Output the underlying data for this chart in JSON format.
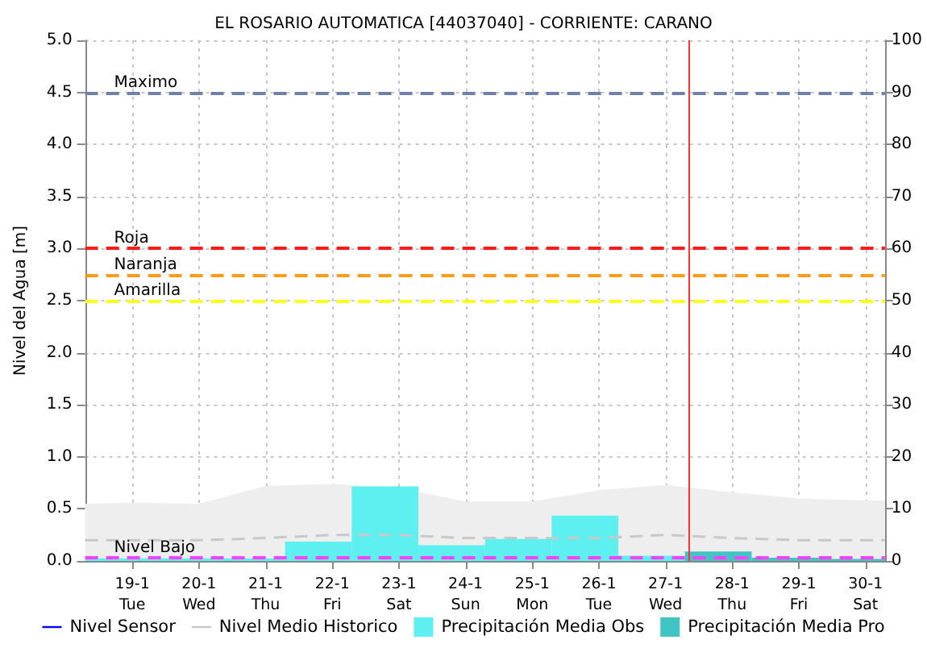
{
  "chart_data": {
    "type": "line",
    "title": "EL ROSARIO AUTOMATICA [44037040] - CORRIENTE: CARANO",
    "ylabel": "Nivel del Agua [m]",
    "xlim": [
      "--01-18T07:00",
      "--01-30T07:00"
    ],
    "xticks": [
      {
        "value": "--01-19",
        "label": "19-1\nTue"
      },
      {
        "value": "--01-20",
        "label": "20-1\nWed"
      },
      {
        "value": "--01-21",
        "label": "21-1\nThu"
      },
      {
        "value": "--01-22",
        "label": "22-1\nFri"
      },
      {
        "value": "--01-23",
        "label": "23-1\nSat"
      },
      {
        "value": "--01-24",
        "label": "24-1\nSun"
      },
      {
        "value": "--01-25",
        "label": "25-1\nMon"
      },
      {
        "value": "--01-26",
        "label": "26-1\nTue"
      },
      {
        "value": "--01-27",
        "label": "27-1\nWed"
      },
      {
        "value": "--01-28",
        "label": "28-1\nThu"
      },
      {
        "value": "--01-29",
        "label": "29-1\nFri"
      },
      {
        "value": "--01-30",
        "label": "30-1\nSat"
      }
    ],
    "ylim": [
      0,
      5
    ],
    "yticks": [
      {
        "value": 0,
        "label": "0.0"
      },
      0.5,
      {
        "value": 1,
        "label": "1.0"
      },
      1.5,
      {
        "value": 2,
        "label": "2.0"
      },
      2.5,
      {
        "value": 3,
        "label": "3.0"
      },
      3.5,
      {
        "value": 4,
        "label": "4.0"
      },
      4.5,
      {
        "value": 5,
        "label": "5.0"
      }
    ],
    "y2lim": [
      0,
      100
    ],
    "y2ticks": [
      0,
      10,
      20,
      30,
      40,
      50,
      60,
      70,
      80,
      90,
      100
    ],
    "series": [
      {
        "name": "Nivel Sensor",
        "color": "#0000ff"
      },
      {
        "name": "Nivel Medio Historico",
        "color": "#c8c8c8",
        "line_style": "dashed",
        "x": [
          "--01-18T07:00",
          "--01-19",
          "--01-20",
          "--01-21",
          "--01-22",
          "--01-23",
          "--01-24",
          "--01-25",
          "--01-26",
          "--01-27",
          "--01-28",
          "--01-29",
          "--01-30",
          "--01-30T07:00"
        ],
        "values": [
          0.2,
          0.2,
          0.2,
          0.22,
          0.25,
          0.25,
          0.22,
          0.22,
          0.22,
          0.25,
          0.22,
          0.2,
          0.2,
          0.2
        ],
        "lower": [
          0,
          0,
          0,
          0,
          0,
          0,
          0,
          0,
          0,
          0,
          0,
          0,
          0,
          0
        ],
        "upper": [
          0.55,
          0.56,
          0.55,
          0.72,
          0.74,
          0.7,
          0.57,
          0.57,
          0.68,
          0.73,
          0.66,
          0.6,
          0.58,
          0.58
        ]
      },
      {
        "name": "Precipitación Media Obs",
        "type": "histogram",
        "axis": "y2",
        "color": "#5ef0f0",
        "bins": [
          "--01-18T07:00",
          "--01-19T07:00",
          "--01-20T07:00",
          "--01-21T07:00",
          "--01-22T07:00",
          "--01-23T07:00",
          "--01-24T07:00",
          "--01-25T07:00",
          "--01-26T07:00",
          "--01-27T07:00"
        ],
        "values": [
          0.5,
          0.5,
          0.5,
          3.7,
          14.3,
          3.0,
          4.2,
          8.7,
          1.0
        ]
      },
      {
        "name": "Precipitación Media Pro",
        "type": "histogram",
        "axis": "y2",
        "color": "#40c4c4",
        "bins": [
          "--01-27T07:00",
          "--01-28T07:00",
          "--01-29T07:00",
          "--01-30T07:00"
        ],
        "values": [
          1.8,
          0.6,
          0.4
        ]
      }
    ],
    "ref_lines": [
      {
        "axis": "y",
        "value": 4.5,
        "label": "Maximo",
        "color": "#7080a8",
        "line_style": "dashed"
      },
      {
        "axis": "y",
        "value": 3.0,
        "label": "Roja",
        "color": "#ff1a1a",
        "line_style": "dashed"
      },
      {
        "axis": "y",
        "value": 2.75,
        "label": "Naranja",
        "color": "#ff9a1a",
        "line_style": "dashed"
      },
      {
        "axis": "y",
        "value": 2.5,
        "label": "Amarilla",
        "color": "#ffff1a",
        "line_style": "dashed"
      },
      {
        "axis": "y",
        "value": 0.03,
        "label": "Nivel Bajo",
        "color": "#ff40ff",
        "line_style": "dashed"
      },
      {
        "axis": "x",
        "value": "--01-27T08:30",
        "color": "#ff3030",
        "line_style": "solid"
      }
    ],
    "grid": true,
    "legend": "bottom"
  }
}
